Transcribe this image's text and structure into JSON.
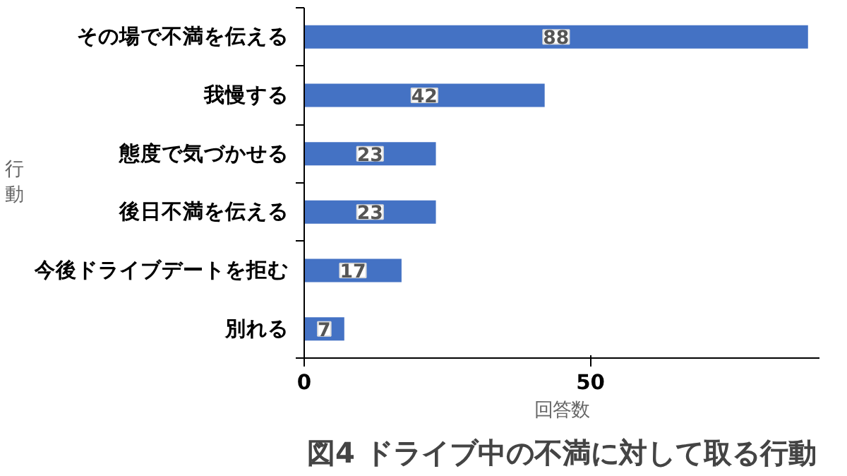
{
  "chart_data": {
    "type": "bar",
    "orientation": "horizontal",
    "title": "図4 ドライブ中の不満に対して取る行動",
    "xlabel": "回答数",
    "ylabel": "行動",
    "categories": [
      "その場で不満を伝える",
      "我慢する",
      "態度で気づかせる",
      "後日不満を伝える",
      "今後ドライブデートを拒む",
      "別れる"
    ],
    "values": [
      88,
      42,
      23,
      23,
      17,
      7
    ],
    "color": "#4472c4",
    "data_labels": true,
    "xlim": [
      0,
      90
    ],
    "xticks": [
      0,
      50
    ],
    "grid": false
  }
}
